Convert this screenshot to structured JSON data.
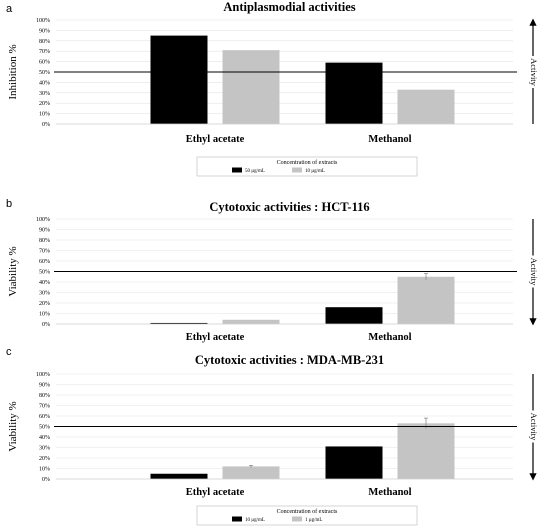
{
  "legends": [
    {
      "title": "Concentration of extracts",
      "items": [
        "50 µg/mL",
        "10 µg/mL"
      ]
    },
    {
      "title": "Concentration of extracts",
      "items": [
        "10 µg/mL",
        "1 µg/mL"
      ]
    }
  ],
  "activity_label": "Activity",
  "colors": {
    "series1": "#000000",
    "series2": "#c4c4c4",
    "threshold": "#000000"
  },
  "chart_data": [
    {
      "panel": "a",
      "type": "bar",
      "title": "Antiplasmodial activities",
      "ylabel": "Inhibition %",
      "xlabel": "",
      "categories": [
        "Ethyl acetate",
        "Methanol"
      ],
      "ylim": [
        0,
        100
      ],
      "yticks": [
        "0%",
        "10%",
        "20%",
        "30%",
        "40%",
        "50%",
        "60%",
        "70%",
        "80%",
        "90%",
        "100%"
      ],
      "threshold": 50,
      "activity_direction": "up",
      "grid": true,
      "legend": "bottom",
      "series": [
        {
          "name": "50 µg/mL",
          "values": [
            85,
            59
          ],
          "errors": [
            0,
            0
          ]
        },
        {
          "name": "10 µg/mL",
          "values": [
            71,
            33
          ],
          "errors": [
            0,
            0
          ]
        }
      ]
    },
    {
      "panel": "b",
      "type": "bar",
      "title": "Cytotoxic activities : HCT-116",
      "ylabel": "Viability %",
      "xlabel": "",
      "categories": [
        "Ethyl acetate",
        "Methanol"
      ],
      "ylim": [
        0,
        100
      ],
      "yticks": [
        "0%",
        "10%",
        "20%",
        "30%",
        "40%",
        "50%",
        "60%",
        "70%",
        "80%",
        "90%",
        "100%"
      ],
      "threshold": 50,
      "activity_direction": "down",
      "grid": true,
      "series": [
        {
          "name": "10 µg/mL",
          "values": [
            1,
            16
          ],
          "errors": [
            0,
            0
          ]
        },
        {
          "name": "1 µg/mL",
          "values": [
            4,
            45
          ],
          "errors": [
            0,
            3
          ]
        }
      ]
    },
    {
      "panel": "c",
      "type": "bar",
      "title": "Cytotoxic activities : MDA-MB-231",
      "ylabel": "Viability %",
      "xlabel": "",
      "categories": [
        "Ethyl acetate",
        "Methanol"
      ],
      "ylim": [
        0,
        100
      ],
      "yticks": [
        "0%",
        "10%",
        "20%",
        "30%",
        "40%",
        "50%",
        "60%",
        "70%",
        "80%",
        "90%",
        "100%"
      ],
      "threshold": 50,
      "activity_direction": "down",
      "grid": true,
      "legend": "bottom",
      "series": [
        {
          "name": "10 µg/mL",
          "values": [
            5,
            31
          ],
          "errors": [
            0,
            0
          ]
        },
        {
          "name": "1 µg/mL",
          "values": [
            12,
            53
          ],
          "errors": [
            1,
            5
          ]
        }
      ]
    }
  ]
}
